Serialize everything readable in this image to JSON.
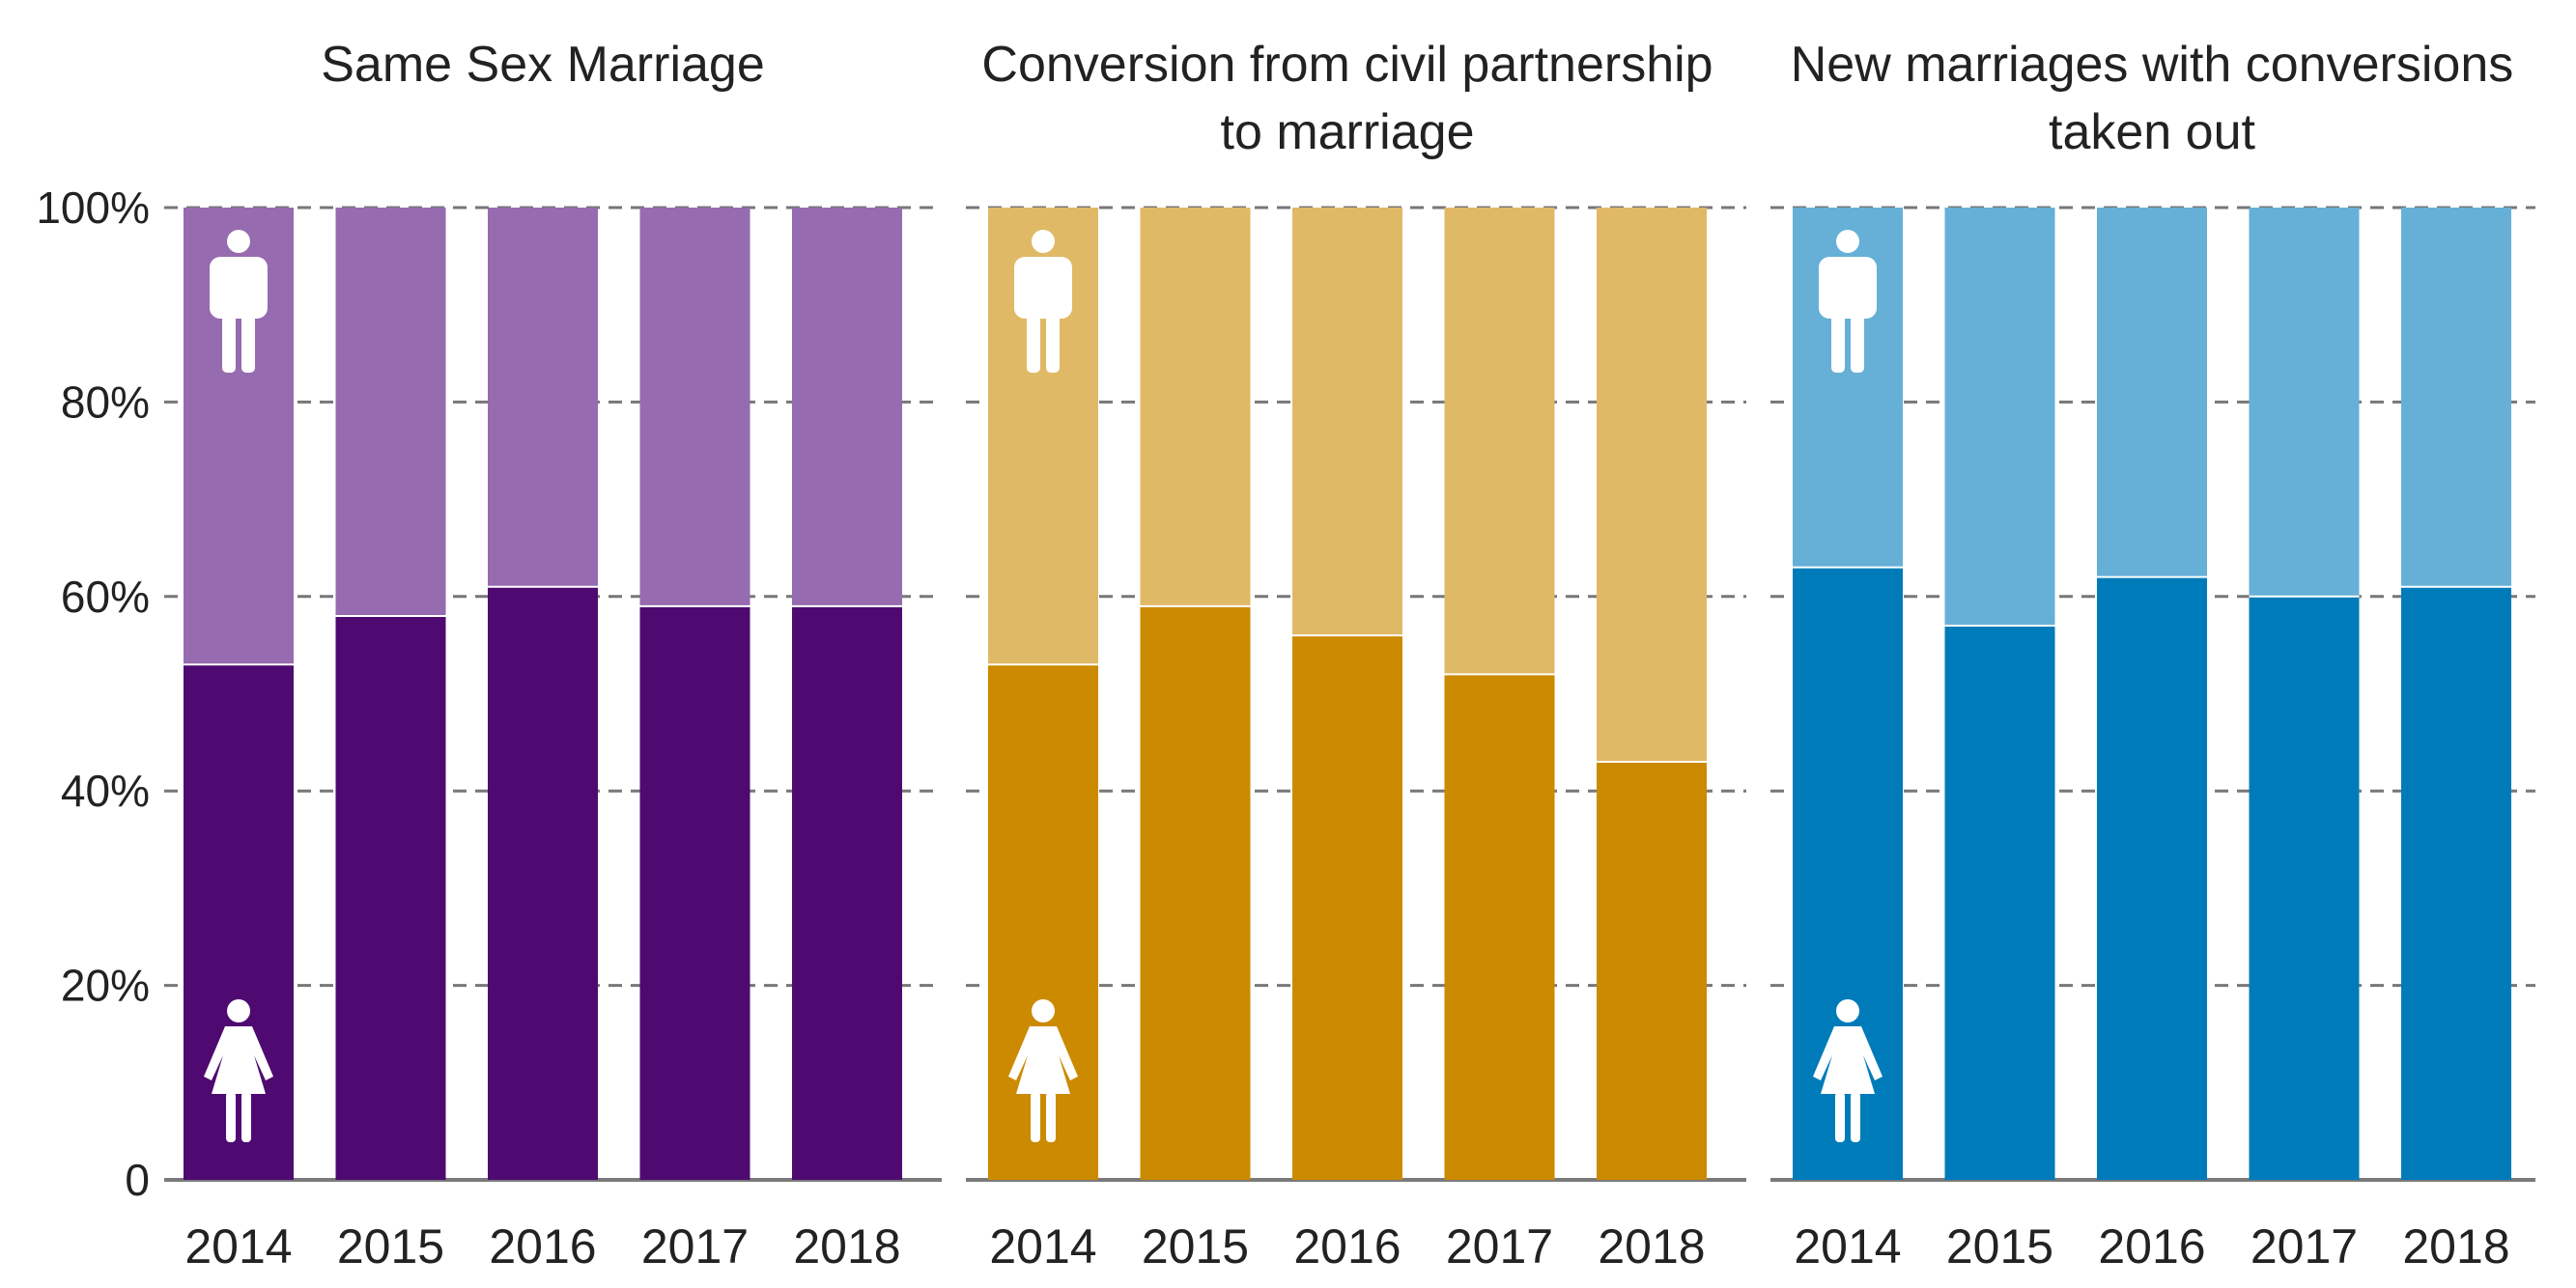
{
  "y_axis": {
    "ticks": [
      "0",
      "20%",
      "40%",
      "60%",
      "80%",
      "100%"
    ],
    "tick_values": [
      0,
      20,
      40,
      60,
      80,
      100
    ]
  },
  "icons": {
    "top": "male-figure-icon",
    "bottom": "female-figure-icon"
  },
  "chart_data": [
    {
      "type": "bar",
      "stacked": true,
      "title_lines": [
        "Same Sex Marriage"
      ],
      "categories": [
        "2014",
        "2015",
        "2016",
        "2017",
        "2018"
      ],
      "series": [
        {
          "icon": "female-figure-icon",
          "color": "#4e0a70",
          "values": [
            53,
            58,
            61,
            59,
            59
          ]
        },
        {
          "icon": "male-figure-icon",
          "color": "#966baf",
          "values": [
            47,
            42,
            39,
            41,
            41
          ]
        }
      ],
      "ylim": [
        0,
        100
      ],
      "grid": true
    },
    {
      "type": "bar",
      "stacked": true,
      "title_lines": [
        "Conversion from civil partnership",
        "to marriage"
      ],
      "categories": [
        "2014",
        "2015",
        "2016",
        "2017",
        "2018"
      ],
      "series": [
        {
          "icon": "female-figure-icon",
          "color": "#cb8a00",
          "values": [
            53,
            59,
            56,
            52,
            43
          ]
        },
        {
          "icon": "male-figure-icon",
          "color": "#e0b967",
          "values": [
            47,
            41,
            44,
            48,
            57
          ]
        }
      ],
      "ylim": [
        0,
        100
      ],
      "grid": true
    },
    {
      "type": "bar",
      "stacked": true,
      "title_lines": [
        "New marriages with conversions",
        "taken out"
      ],
      "categories": [
        "2014",
        "2015",
        "2016",
        "2017",
        "2018"
      ],
      "series": [
        {
          "icon": "female-figure-icon",
          "color": "#007bba",
          "values": [
            63,
            57,
            62,
            60,
            61
          ]
        },
        {
          "icon": "male-figure-icon",
          "color": "#66b0d7",
          "values": [
            37,
            43,
            38,
            40,
            39
          ]
        }
      ],
      "ylim": [
        0,
        100
      ],
      "grid": true
    }
  ]
}
